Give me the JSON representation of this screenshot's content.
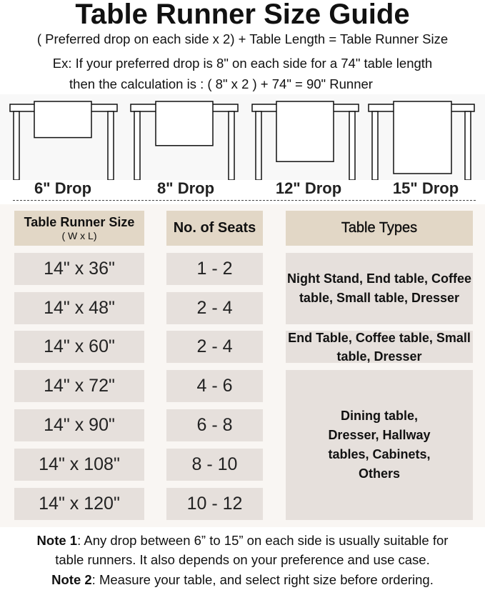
{
  "title": "Table Runner Size Guide",
  "formula": "( Preferred drop on each side x 2) + Table Length = Table Runner Size",
  "example_line1": "Ex: If your preferred drop is 8\" on each side for a 74\" table length",
  "example_line2": "then the calculation is : ( 8\" x 2 ) + 74\" = 90\" Runner",
  "drops": [
    {
      "label": "6\" Drop",
      "inches": 6
    },
    {
      "label": "8\" Drop",
      "inches": 8
    },
    {
      "label": "12\" Drop",
      "inches": 12
    },
    {
      "label": "15\" Drop",
      "inches": 15
    }
  ],
  "table": {
    "headers": {
      "size": "Table Runner Size",
      "size_sub": "( W x L)",
      "seats": "No. of Seats",
      "types": "Table Types"
    },
    "rows": [
      {
        "size": "14\" x 36\"",
        "seats": "1 - 2"
      },
      {
        "size": "14\" x 48\"",
        "seats": "2 - 4"
      },
      {
        "size": "14\" x 60\"",
        "seats": "2 - 4"
      },
      {
        "size": "14\" x 72\"",
        "seats": "4 - 6"
      },
      {
        "size": "14\" x 90\"",
        "seats": "6 - 8"
      },
      {
        "size": "14\" x 108\"",
        "seats": "8 - 10"
      },
      {
        "size": "14\" x 120\"",
        "seats": "10 - 12"
      }
    ],
    "types": [
      "Night Stand, End table, Coffee table, Small table, Dresser",
      "End Table, Coffee table, Small table, Dresser",
      "Dining table, Dresser, Hallway tables, Cabinets, Others"
    ]
  },
  "notes": {
    "note1_label": "Note 1",
    "note1_text": ": Any drop between 6” to 15” on each side is usually suitable for",
    "note1_text2": "table runners. It also depends on your preference and use case.",
    "note2_label": "Note 2",
    "note2_text": ": Measure your table, and select right size before ordering."
  },
  "colors": {
    "header": "#e2d7c6",
    "cell": "#e6e0dc",
    "panel": "#f9f6f3"
  }
}
